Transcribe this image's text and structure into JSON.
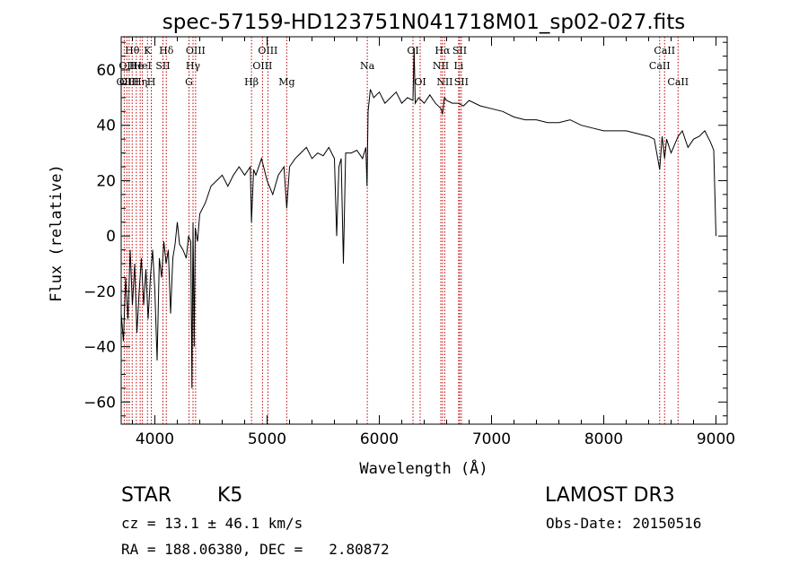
{
  "colors": {
    "axis": "#000000",
    "spectrum": "#000000",
    "line_marker": "#c00000",
    "background": "#ffffff"
  },
  "chart_data": {
    "type": "line",
    "title": "spec-57159-HD123751N041718M01_sp02-027.fits",
    "xlabel": "Wavelength (Å)",
    "ylabel": "Flux (relative)",
    "xlim": [
      3700,
      9100
    ],
    "ylim": [
      -68,
      72
    ],
    "xticks": [
      4000,
      5000,
      6000,
      7000,
      8000,
      9000
    ],
    "yticks": [
      -60,
      -40,
      -20,
      0,
      20,
      40,
      60
    ],
    "series": [
      {
        "name": "flux",
        "x": [
          3700,
          3720,
          3740,
          3760,
          3780,
          3800,
          3820,
          3840,
          3860,
          3880,
          3900,
          3920,
          3940,
          3960,
          3980,
          4000,
          4020,
          4040,
          4060,
          4080,
          4100,
          4120,
          4140,
          4160,
          4180,
          4200,
          4220,
          4250,
          4280,
          4300,
          4320,
          4330,
          4340,
          4350,
          4360,
          4380,
          4400,
          4450,
          4500,
          4550,
          4600,
          4650,
          4700,
          4750,
          4800,
          4850,
          4861,
          4880,
          4900,
          4950,
          5000,
          5050,
          5100,
          5150,
          5175,
          5200,
          5250,
          5300,
          5350,
          5400,
          5450,
          5500,
          5550,
          5600,
          5620,
          5640,
          5660,
          5680,
          5700,
          5750,
          5800,
          5850,
          5880,
          5890,
          5900,
          5920,
          5950,
          6000,
          6050,
          6100,
          6150,
          6200,
          6250,
          6300,
          6310,
          6320,
          6350,
          6400,
          6450,
          6500,
          6550,
          6563,
          6580,
          6600,
          6650,
          6700,
          6750,
          6800,
          6900,
          7000,
          7100,
          7200,
          7300,
          7400,
          7500,
          7600,
          7700,
          7800,
          7900,
          8000,
          8100,
          8200,
          8300,
          8400,
          8450,
          8498,
          8520,
          8542,
          8560,
          8600,
          8662,
          8700,
          8750,
          8800,
          8850,
          8900,
          8950,
          8980,
          9000
        ],
        "values": [
          -28,
          -38,
          -15,
          -30,
          -5,
          -25,
          -10,
          -35,
          -20,
          -8,
          -25,
          -12,
          -30,
          -15,
          -5,
          -20,
          -45,
          -8,
          -15,
          -2,
          -10,
          -5,
          -28,
          -8,
          -3,
          5,
          -3,
          -5,
          -8,
          0,
          -2,
          -55,
          5,
          -40,
          3,
          -2,
          8,
          12,
          18,
          20,
          22,
          18,
          22,
          25,
          22,
          25,
          5,
          24,
          22,
          28,
          20,
          15,
          22,
          25,
          10,
          25,
          28,
          30,
          32,
          28,
          30,
          29,
          32,
          28,
          0,
          25,
          28,
          -10,
          30,
          30,
          31,
          28,
          32,
          18,
          45,
          53,
          50,
          52,
          48,
          50,
          52,
          48,
          50,
          49,
          68,
          48,
          50,
          48,
          51,
          48,
          46,
          44,
          50,
          49,
          48,
          48,
          47,
          49,
          47,
          46,
          45,
          43,
          42,
          42,
          41,
          41,
          42,
          40,
          39,
          38,
          38,
          38,
          37,
          36,
          35,
          24,
          36,
          28,
          35,
          30,
          36,
          38,
          32,
          35,
          36,
          38,
          34,
          31,
          0
        ]
      }
    ],
    "line_markers": [
      {
        "wavelength": 3727,
        "label": "OII",
        "row": 2
      },
      {
        "wavelength": 3750,
        "label": "OII",
        "row": 1
      },
      {
        "wavelength": 3771,
        "label": "OIII",
        "row": 2
      },
      {
        "wavelength": 3798,
        "label": "Hθ",
        "row": 0
      },
      {
        "wavelength": 3835,
        "label": "He",
        "row": 1
      },
      {
        "wavelength": 3869,
        "label": "Hη",
        "row": 2
      },
      {
        "wavelength": 3889,
        "label": "HeI",
        "row": 1
      },
      {
        "wavelength": 3934,
        "label": "K",
        "row": 0
      },
      {
        "wavelength": 3968,
        "label": "H",
        "row": 2
      },
      {
        "wavelength": 4072,
        "label": "SII",
        "row": 1
      },
      {
        "wavelength": 4102,
        "label": "Hδ",
        "row": 0
      },
      {
        "wavelength": 4304,
        "label": "G",
        "row": 2
      },
      {
        "wavelength": 4340,
        "label": "Hγ",
        "row": 1
      },
      {
        "wavelength": 4363,
        "label": "OIII",
        "row": 0
      },
      {
        "wavelength": 4861,
        "label": "Hβ",
        "row": 2
      },
      {
        "wavelength": 4959,
        "label": "OIII",
        "row": 1
      },
      {
        "wavelength": 5007,
        "label": "OIII",
        "row": 0
      },
      {
        "wavelength": 5175,
        "label": "Mg",
        "row": 2
      },
      {
        "wavelength": 5893,
        "label": "Na",
        "row": 1
      },
      {
        "wavelength": 6300,
        "label": "OI",
        "row": 0
      },
      {
        "wavelength": 6364,
        "label": "OI",
        "row": 2
      },
      {
        "wavelength": 6548,
        "label": "NII",
        "row": 1
      },
      {
        "wavelength": 6563,
        "label": "Hα",
        "row": 0
      },
      {
        "wavelength": 6583,
        "label": "NII",
        "row": 2
      },
      {
        "wavelength": 6707,
        "label": "Li",
        "row": 1
      },
      {
        "wavelength": 6716,
        "label": "SII",
        "row": 0
      },
      {
        "wavelength": 6731,
        "label": "SII",
        "row": 2
      },
      {
        "wavelength": 8498,
        "label": "CaII",
        "row": 1
      },
      {
        "wavelength": 8542,
        "label": "CaII",
        "row": 0
      },
      {
        "wavelength": 8662,
        "label": "CaII",
        "row": 2
      }
    ]
  },
  "info": {
    "class": "STAR",
    "subclass": "K5",
    "survey": "LAMOST DR3",
    "cz": "cz = 13.1 ± 46.1 km/s",
    "obs_date": "Obs-Date: 20150516",
    "coords": "RA = 188.06380, DEC =   2.80872"
  }
}
